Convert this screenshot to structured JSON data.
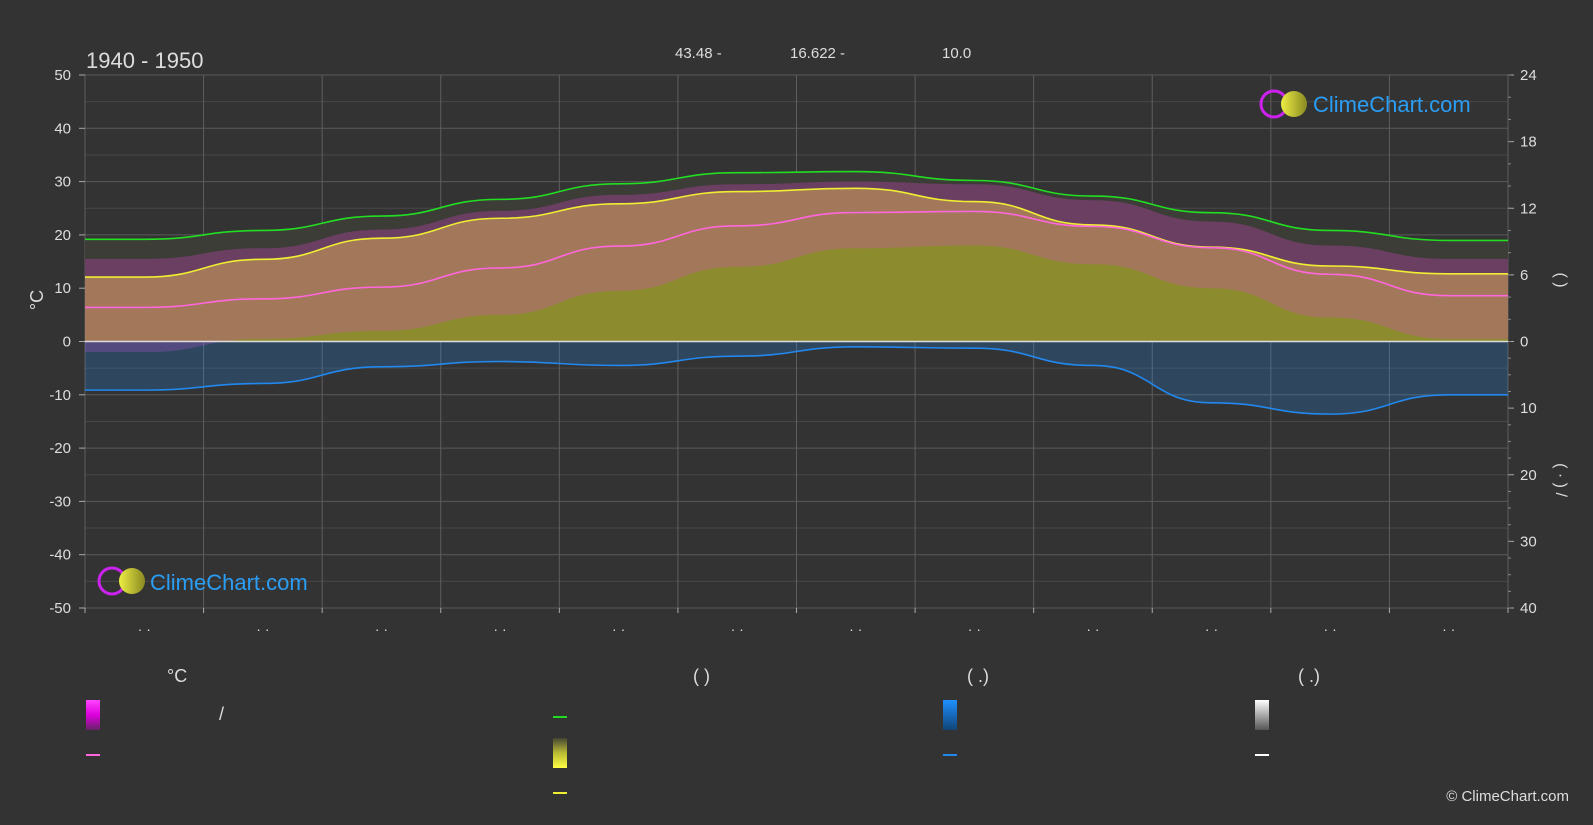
{
  "header": {
    "period": "1940 - 1950",
    "stats": [
      {
        "label": "43.48 -"
      },
      {
        "label": "16.622 -"
      },
      {
        "label": "10.0"
      }
    ]
  },
  "watermark": {
    "text": "ClimeChart.com"
  },
  "legend": {
    "col1_title": "°C",
    "col1_slash": "/",
    "col2_title": "(          )",
    "col3_title": "(   .)",
    "col4_title": "(   .)"
  },
  "copyright": "© ClimeChart.com",
  "colors": {
    "background": "#333333",
    "temp_range": "#e020e0",
    "mean_temp": "#ff66dd",
    "daylight": "#22dd22",
    "sunshine_fill": "#bbbb33",
    "sunshine_line": "#eeee33",
    "precip_line": "#2288ee",
    "precip_fill": "#1e90ff",
    "snow": "#ffffff"
  },
  "chart_data": {
    "type": "line",
    "x": [
      1,
      2,
      3,
      4,
      5,
      6,
      7,
      8,
      9,
      10,
      11,
      12
    ],
    "xlabel": "",
    "x_tick_labels": [
      "· ·",
      "· ·",
      "· ·",
      "· ·",
      "· ·",
      "· ·",
      "· ·",
      "· ·",
      "· ·",
      "· ·",
      "· ·",
      "· ·"
    ],
    "ylabel": "°C",
    "ylim": [
      -50,
      50
    ],
    "y_ticks": [
      50,
      40,
      30,
      20,
      10,
      0,
      -10,
      -20,
      -30,
      -40,
      -50
    ],
    "right_axis": {
      "upper_ticks": [
        24,
        18,
        12,
        6,
        0
      ],
      "upper_range": [
        0,
        24
      ],
      "lower_ticks": [
        10,
        20,
        30,
        40
      ],
      "lower_range": [
        0,
        40
      ],
      "upper_label": "(    )",
      "lower_label": "(  ·  )   /"
    },
    "grid": true,
    "series": [
      {
        "key": "daylight_hours",
        "values": [
          9.2,
          10.0,
          11.3,
          12.8,
          14.2,
          15.2,
          15.3,
          14.5,
          13.1,
          11.6,
          10.0,
          9.1
        ]
      },
      {
        "key": "sunshine_hours",
        "values": [
          5.8,
          7.4,
          9.3,
          11.1,
          12.4,
          13.5,
          13.8,
          12.6,
          10.5,
          8.5,
          6.8,
          6.1
        ]
      },
      {
        "key": "mean_temp_c",
        "values": [
          6.4,
          8.0,
          10.2,
          13.8,
          17.9,
          21.7,
          24.2,
          24.4,
          21.6,
          17.6,
          12.6,
          8.6
        ]
      },
      {
        "key": "daily_max_c",
        "values": [
          15.5,
          17.5,
          21.0,
          24.5,
          27.5,
          29.5,
          30.0,
          29.5,
          26.5,
          22.5,
          18.0,
          15.5
        ]
      },
      {
        "key": "daily_min_c",
        "values": [
          -2.0,
          0.5,
          2.0,
          5.0,
          9.5,
          14.0,
          17.5,
          18.0,
          14.5,
          10.0,
          4.5,
          0.5
        ]
      },
      {
        "key": "precipitation_mm",
        "values": [
          7.3,
          6.3,
          3.8,
          3.0,
          3.6,
          2.2,
          0.8,
          1.0,
          3.6,
          9.2,
          10.9,
          8.0
        ]
      }
    ]
  }
}
